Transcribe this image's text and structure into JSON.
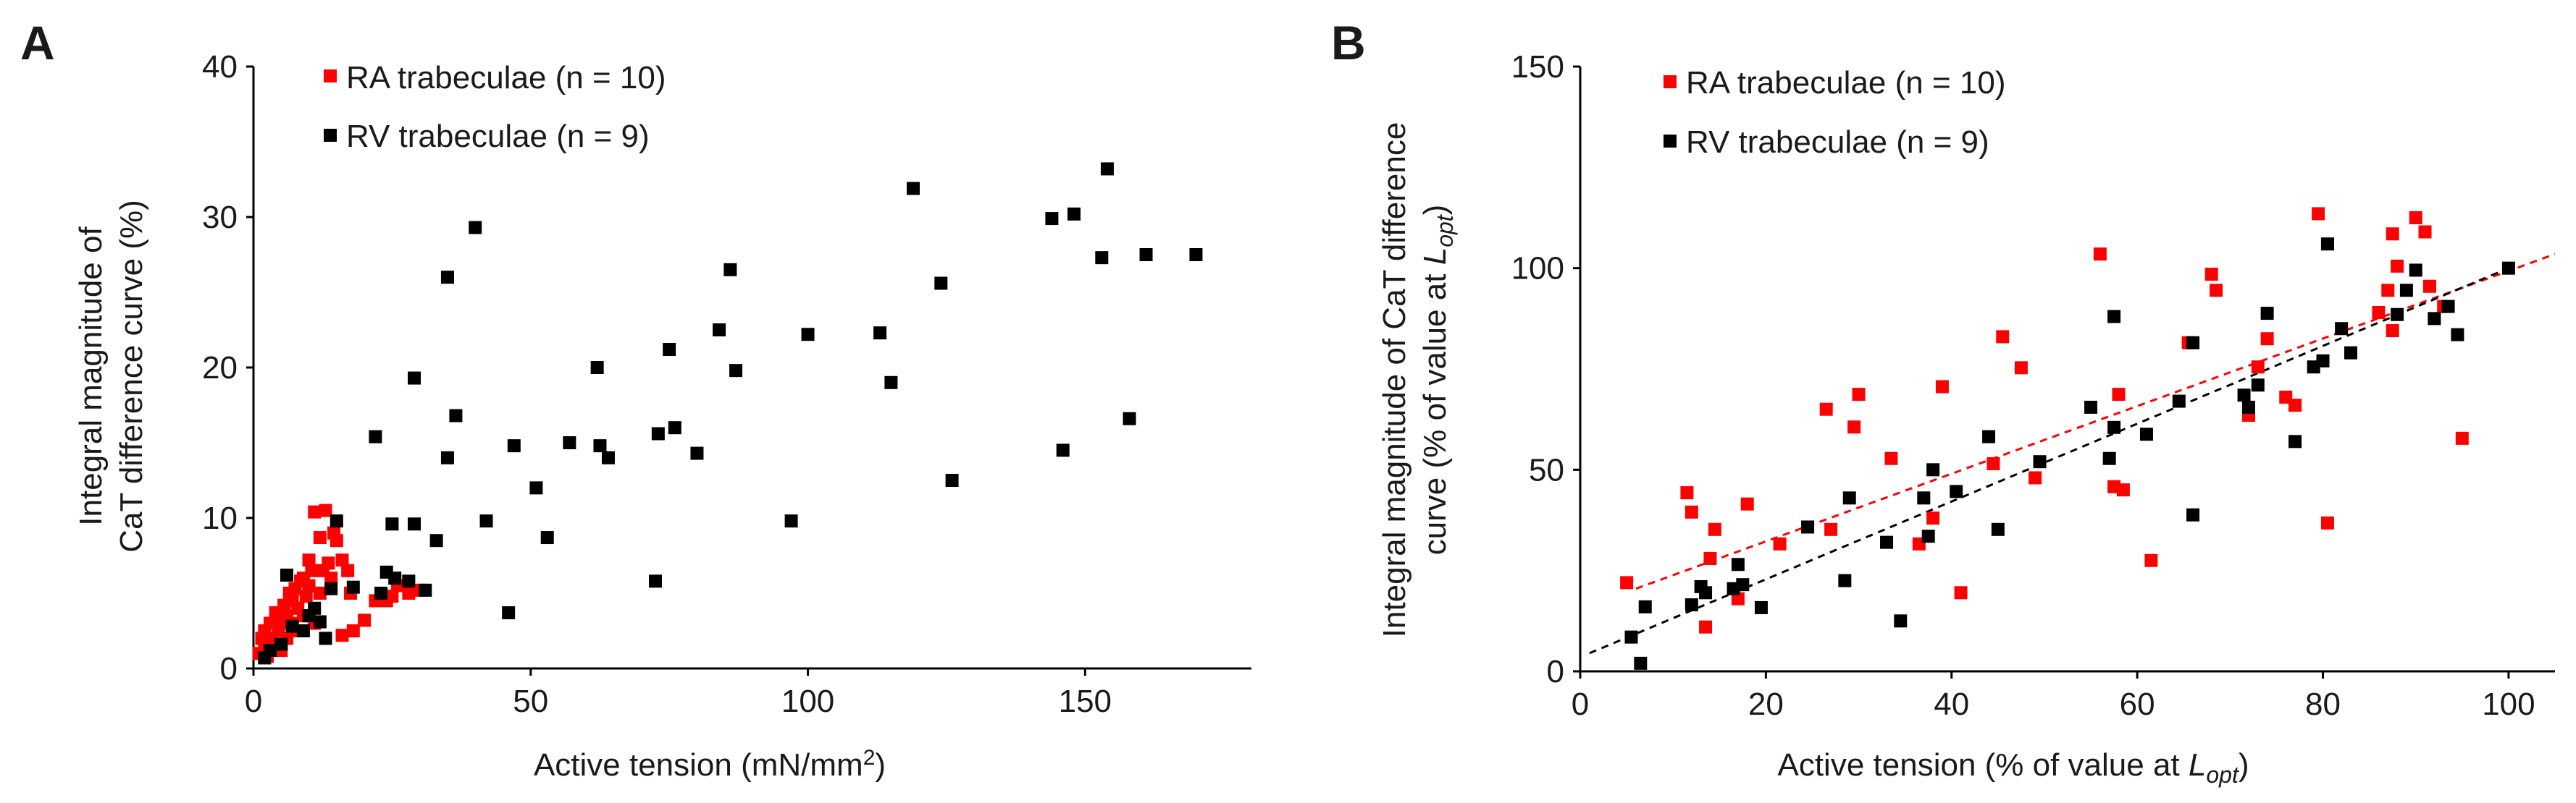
{
  "colors": {
    "ra": "#ff0000",
    "rv": "#000000",
    "axis": "#000000",
    "text": "#1a1a1a"
  },
  "chart_data": [
    {
      "type": "scatter",
      "panel": "A",
      "title": "",
      "xlabel": "Active tension (mN/mm²)",
      "ylabel_lines": [
        "Integral magnitude of",
        "CaT difference curve (%)"
      ],
      "xlim": [
        0,
        180
      ],
      "ylim": [
        0,
        40
      ],
      "xticks": [
        0,
        50,
        100,
        150
      ],
      "yticks": [
        0,
        10,
        20,
        30,
        40
      ],
      "xtick_labels": [
        "0",
        "50",
        "100",
        "150"
      ],
      "ytick_labels": [
        "0",
        "10",
        "20",
        "30",
        "40"
      ],
      "legend": "top-left",
      "series": [
        {
          "name": "RA trabeculae (n = 10)",
          "color": "#ff0000",
          "points": [
            [
              1,
              1
            ],
            [
              1.5,
              2
            ],
            [
              2,
              1.2
            ],
            [
              2,
              2.5
            ],
            [
              2.5,
              0.8
            ],
            [
              3,
              1.5
            ],
            [
              3,
              3
            ],
            [
              3.5,
              2
            ],
            [
              4,
              1.3
            ],
            [
              4,
              3.7
            ],
            [
              4.5,
              2.5
            ],
            [
              5,
              1.2
            ],
            [
              5,
              3
            ],
            [
              5.5,
              4.2
            ],
            [
              6,
              2
            ],
            [
              6,
              3.5
            ],
            [
              6.5,
              5
            ],
            [
              7,
              3
            ],
            [
              7,
              4.5
            ],
            [
              7.5,
              5.3
            ],
            [
              8,
              2.5
            ],
            [
              8,
              4
            ],
            [
              8.5,
              5.8
            ],
            [
              9,
              3.5
            ],
            [
              9,
              6
            ],
            [
              9.5,
              4.8
            ],
            [
              10,
              5.5
            ],
            [
              10,
              7.2
            ],
            [
              10.5,
              6.5
            ],
            [
              11,
              10.4
            ],
            [
              11,
              3
            ],
            [
              12,
              5
            ],
            [
              12,
              8.7
            ],
            [
              12.5,
              6.5
            ],
            [
              13,
              10.5
            ],
            [
              13.5,
              7
            ],
            [
              14,
              6
            ],
            [
              14.5,
              9
            ],
            [
              15,
              8.5
            ],
            [
              16,
              7.2
            ],
            [
              17,
              6.5
            ],
            [
              17.5,
              5
            ],
            [
              16,
              2.2
            ],
            [
              18,
              2.5
            ],
            [
              20,
              3.2
            ],
            [
              22,
              4.5
            ],
            [
              23,
              5
            ],
            [
              24,
              4.5
            ],
            [
              25,
              4.8
            ],
            [
              26,
              5.5
            ],
            [
              28,
              5
            ],
            [
              30,
              5.2
            ]
          ]
        },
        {
          "name": "RV trabeculae (n = 9)",
          "color": "#000000",
          "points": [
            [
              2,
              0.7
            ],
            [
              3,
              1.2
            ],
            [
              5,
              1.6
            ],
            [
              6,
              6.2
            ],
            [
              7,
              2.8
            ],
            [
              9,
              2.5
            ],
            [
              10,
              3.5
            ],
            [
              11,
              4
            ],
            [
              12,
              3.1
            ],
            [
              13,
              2
            ],
            [
              14,
              5.3
            ],
            [
              15,
              9.8
            ],
            [
              18,
              5.4
            ],
            [
              22,
              15.4
            ],
            [
              23,
              5
            ],
            [
              24,
              6.4
            ],
            [
              25,
              9.6
            ],
            [
              25.5,
              6
            ],
            [
              28,
              5.8
            ],
            [
              29,
              19.3
            ],
            [
              29,
              9.6
            ],
            [
              31,
              5.2
            ],
            [
              33,
              8.5
            ],
            [
              35,
              14
            ],
            [
              35,
              26
            ],
            [
              36.5,
              16.8
            ],
            [
              40,
              29.3
            ],
            [
              42,
              9.8
            ],
            [
              46,
              3.7
            ],
            [
              47,
              14.8
            ],
            [
              51,
              12
            ],
            [
              53,
              8.7
            ],
            [
              57,
              15
            ],
            [
              62,
              20
            ],
            [
              62.5,
              14.8
            ],
            [
              64,
              14
            ],
            [
              72.5,
              5.8
            ],
            [
              73,
              15.6
            ],
            [
              75,
              21.2
            ],
            [
              76,
              16
            ],
            [
              80,
              14.3
            ],
            [
              84,
              22.5
            ],
            [
              86,
              26.5
            ],
            [
              87,
              19.8
            ],
            [
              97,
              9.8
            ],
            [
              100,
              22.2
            ],
            [
              113,
              22.3
            ],
            [
              115,
              19
            ],
            [
              119,
              31.9
            ],
            [
              124,
              25.6
            ],
            [
              126,
              12.5
            ],
            [
              144,
              29.9
            ],
            [
              146,
              14.5
            ],
            [
              148,
              30.2
            ],
            [
              153,
              27.3
            ],
            [
              154,
              33.2
            ],
            [
              158,
              16.6
            ],
            [
              161,
              27.5
            ],
            [
              170,
              27.5
            ]
          ]
        }
      ]
    },
    {
      "type": "scatter",
      "panel": "B",
      "title": "",
      "xlabel": "Active tension (% of value at Lopt)",
      "xlabel_parts": [
        "Active tension (% of value at ",
        "L",
        "opt",
        ")"
      ],
      "ylabel_lines": [
        "Integral magnitude of CaT difference",
        "curve (% of value at Lopt)"
      ],
      "ylabel_line2_parts": [
        "curve (% of value at ",
        "L",
        "opt",
        ")"
      ],
      "xlim": [
        0,
        105
      ],
      "ylim": [
        0,
        150
      ],
      "xticks": [
        0,
        20,
        40,
        60,
        80,
        100
      ],
      "yticks": [
        0,
        50,
        100,
        150
      ],
      "xtick_labels": [
        "0",
        "20",
        "40",
        "60",
        "80",
        "100"
      ],
      "ytick_labels": [
        "0",
        "50",
        "100",
        "150"
      ],
      "legend": "top-left",
      "series": [
        {
          "name": "RA trabeculae (n = 10)",
          "color": "#ff0000",
          "trendline": {
            "style": "dashed",
            "x": [
              6,
              105
            ],
            "y": [
              20.5,
              103.5
            ]
          },
          "points": [
            [
              5,
              22
            ],
            [
              11.5,
              44.3
            ],
            [
              12,
              39.5
            ],
            [
              13.5,
              11
            ],
            [
              14,
              28
            ],
            [
              14.5,
              35.2
            ],
            [
              17,
              18
            ],
            [
              18,
              41.5
            ],
            [
              21.5,
              31.6
            ],
            [
              26.5,
              65
            ],
            [
              27,
              35.2
            ],
            [
              29.5,
              60.6
            ],
            [
              30,
              68.7
            ],
            [
              33.5,
              52.8
            ],
            [
              36.5,
              31.6
            ],
            [
              38,
              38
            ],
            [
              39,
              70.6
            ],
            [
              41,
              19.5
            ],
            [
              44.5,
              51.5
            ],
            [
              45.5,
              83
            ],
            [
              47.5,
              75.3
            ],
            [
              49,
              48
            ],
            [
              56,
              103.5
            ],
            [
              57.5,
              45.8
            ],
            [
              58,
              68.7
            ],
            [
              58.5,
              45
            ],
            [
              61.5,
              27.5
            ],
            [
              65.5,
              81.5
            ],
            [
              68,
              98.5
            ],
            [
              68.5,
              94.5
            ],
            [
              72,
              63.5
            ],
            [
              73,
              75.5
            ],
            [
              74,
              82.5
            ],
            [
              76,
              68
            ],
            [
              77,
              66
            ],
            [
              79.5,
              113.5
            ],
            [
              80.5,
              36.8
            ],
            [
              86,
              89
            ],
            [
              87,
              94.5
            ],
            [
              87.5,
              108.5
            ],
            [
              87.5,
              84.5
            ],
            [
              88,
              100.5
            ],
            [
              90,
              112.5
            ],
            [
              91,
              109
            ],
            [
              91.5,
              95.5
            ],
            [
              93,
              90.5
            ],
            [
              95,
              57.8
            ]
          ]
        },
        {
          "name": "RV trabeculae (n = 9)",
          "color": "#000000",
          "trendline": {
            "style": "dashed",
            "x": [
              1,
              100
            ],
            "y": [
              4.5,
              100
            ]
          },
          "points": [
            [
              5.5,
              8.5
            ],
            [
              6.5,
              2
            ],
            [
              7,
              16
            ],
            [
              12,
              16.5
            ],
            [
              13,
              21
            ],
            [
              13.5,
              19.5
            ],
            [
              16.5,
              20.5
            ],
            [
              17,
              26.5
            ],
            [
              17.5,
              21.5
            ],
            [
              19.5,
              15.8
            ],
            [
              24.5,
              35.8
            ],
            [
              28.5,
              22.5
            ],
            [
              29,
              43
            ],
            [
              33,
              32
            ],
            [
              34.5,
              12.5
            ],
            [
              37,
              43
            ],
            [
              37.5,
              33.5
            ],
            [
              38,
              50
            ],
            [
              40.5,
              44.6
            ],
            [
              44,
              58.2
            ],
            [
              45,
              35.2
            ],
            [
              49.5,
              52
            ],
            [
              55,
              65.5
            ],
            [
              57,
              52.8
            ],
            [
              57.5,
              88
            ],
            [
              57.5,
              60.5
            ],
            [
              61,
              58.8
            ],
            [
              64.5,
              67
            ],
            [
              66,
              38.8
            ],
            [
              66,
              81.5
            ],
            [
              71.5,
              68.5
            ],
            [
              72,
              65.5
            ],
            [
              73,
              71
            ],
            [
              74,
              88.8
            ],
            [
              77,
              57
            ],
            [
              79,
              75.5
            ],
            [
              80,
              77
            ],
            [
              80.5,
              106
            ],
            [
              82,
              85
            ],
            [
              83,
              79
            ],
            [
              88,
              88.5
            ],
            [
              89,
              94.5
            ],
            [
              90,
              99.5
            ],
            [
              92,
              87.5
            ],
            [
              93.5,
              90.5
            ],
            [
              94.5,
              83.5
            ],
            [
              100,
              100
            ]
          ]
        }
      ]
    }
  ]
}
